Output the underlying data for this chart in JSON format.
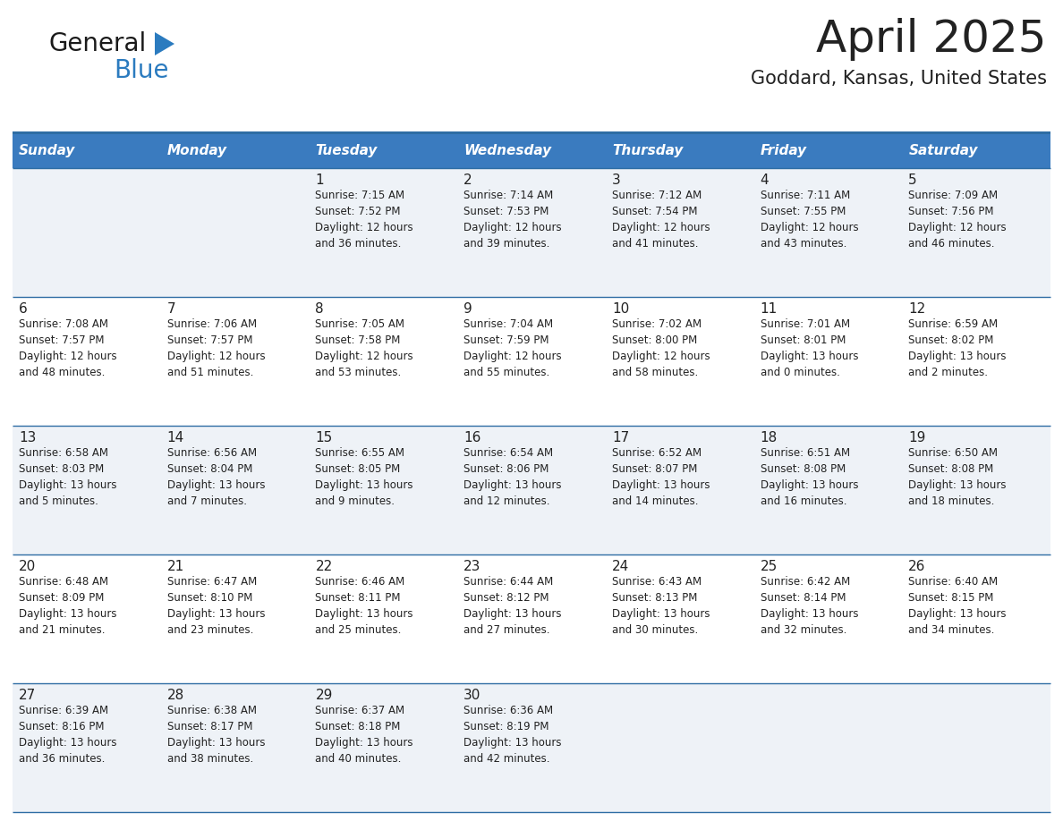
{
  "title": "April 2025",
  "subtitle": "Goddard, Kansas, United States",
  "header_bg_color": "#3a7bbf",
  "header_text_color": "#ffffff",
  "cell_bg_color_light": "#eef2f7",
  "cell_bg_color_white": "#ffffff",
  "separator_color": "#2e6da4",
  "text_color": "#222222",
  "days_of_week": [
    "Sunday",
    "Monday",
    "Tuesday",
    "Wednesday",
    "Thursday",
    "Friday",
    "Saturday"
  ],
  "weeks": [
    [
      {
        "day": "",
        "info": ""
      },
      {
        "day": "",
        "info": ""
      },
      {
        "day": "1",
        "info": "Sunrise: 7:15 AM\nSunset: 7:52 PM\nDaylight: 12 hours\nand 36 minutes."
      },
      {
        "day": "2",
        "info": "Sunrise: 7:14 AM\nSunset: 7:53 PM\nDaylight: 12 hours\nand 39 minutes."
      },
      {
        "day": "3",
        "info": "Sunrise: 7:12 AM\nSunset: 7:54 PM\nDaylight: 12 hours\nand 41 minutes."
      },
      {
        "day": "4",
        "info": "Sunrise: 7:11 AM\nSunset: 7:55 PM\nDaylight: 12 hours\nand 43 minutes."
      },
      {
        "day": "5",
        "info": "Sunrise: 7:09 AM\nSunset: 7:56 PM\nDaylight: 12 hours\nand 46 minutes."
      }
    ],
    [
      {
        "day": "6",
        "info": "Sunrise: 7:08 AM\nSunset: 7:57 PM\nDaylight: 12 hours\nand 48 minutes."
      },
      {
        "day": "7",
        "info": "Sunrise: 7:06 AM\nSunset: 7:57 PM\nDaylight: 12 hours\nand 51 minutes."
      },
      {
        "day": "8",
        "info": "Sunrise: 7:05 AM\nSunset: 7:58 PM\nDaylight: 12 hours\nand 53 minutes."
      },
      {
        "day": "9",
        "info": "Sunrise: 7:04 AM\nSunset: 7:59 PM\nDaylight: 12 hours\nand 55 minutes."
      },
      {
        "day": "10",
        "info": "Sunrise: 7:02 AM\nSunset: 8:00 PM\nDaylight: 12 hours\nand 58 minutes."
      },
      {
        "day": "11",
        "info": "Sunrise: 7:01 AM\nSunset: 8:01 PM\nDaylight: 13 hours\nand 0 minutes."
      },
      {
        "day": "12",
        "info": "Sunrise: 6:59 AM\nSunset: 8:02 PM\nDaylight: 13 hours\nand 2 minutes."
      }
    ],
    [
      {
        "day": "13",
        "info": "Sunrise: 6:58 AM\nSunset: 8:03 PM\nDaylight: 13 hours\nand 5 minutes."
      },
      {
        "day": "14",
        "info": "Sunrise: 6:56 AM\nSunset: 8:04 PM\nDaylight: 13 hours\nand 7 minutes."
      },
      {
        "day": "15",
        "info": "Sunrise: 6:55 AM\nSunset: 8:05 PM\nDaylight: 13 hours\nand 9 minutes."
      },
      {
        "day": "16",
        "info": "Sunrise: 6:54 AM\nSunset: 8:06 PM\nDaylight: 13 hours\nand 12 minutes."
      },
      {
        "day": "17",
        "info": "Sunrise: 6:52 AM\nSunset: 8:07 PM\nDaylight: 13 hours\nand 14 minutes."
      },
      {
        "day": "18",
        "info": "Sunrise: 6:51 AM\nSunset: 8:08 PM\nDaylight: 13 hours\nand 16 minutes."
      },
      {
        "day": "19",
        "info": "Sunrise: 6:50 AM\nSunset: 8:08 PM\nDaylight: 13 hours\nand 18 minutes."
      }
    ],
    [
      {
        "day": "20",
        "info": "Sunrise: 6:48 AM\nSunset: 8:09 PM\nDaylight: 13 hours\nand 21 minutes."
      },
      {
        "day": "21",
        "info": "Sunrise: 6:47 AM\nSunset: 8:10 PM\nDaylight: 13 hours\nand 23 minutes."
      },
      {
        "day": "22",
        "info": "Sunrise: 6:46 AM\nSunset: 8:11 PM\nDaylight: 13 hours\nand 25 minutes."
      },
      {
        "day": "23",
        "info": "Sunrise: 6:44 AM\nSunset: 8:12 PM\nDaylight: 13 hours\nand 27 minutes."
      },
      {
        "day": "24",
        "info": "Sunrise: 6:43 AM\nSunset: 8:13 PM\nDaylight: 13 hours\nand 30 minutes."
      },
      {
        "day": "25",
        "info": "Sunrise: 6:42 AM\nSunset: 8:14 PM\nDaylight: 13 hours\nand 32 minutes."
      },
      {
        "day": "26",
        "info": "Sunrise: 6:40 AM\nSunset: 8:15 PM\nDaylight: 13 hours\nand 34 minutes."
      }
    ],
    [
      {
        "day": "27",
        "info": "Sunrise: 6:39 AM\nSunset: 8:16 PM\nDaylight: 13 hours\nand 36 minutes."
      },
      {
        "day": "28",
        "info": "Sunrise: 6:38 AM\nSunset: 8:17 PM\nDaylight: 13 hours\nand 38 minutes."
      },
      {
        "day": "29",
        "info": "Sunrise: 6:37 AM\nSunset: 8:18 PM\nDaylight: 13 hours\nand 40 minutes."
      },
      {
        "day": "30",
        "info": "Sunrise: 6:36 AM\nSunset: 8:19 PM\nDaylight: 13 hours\nand 42 minutes."
      },
      {
        "day": "",
        "info": ""
      },
      {
        "day": "",
        "info": ""
      },
      {
        "day": "",
        "info": ""
      }
    ]
  ],
  "logo_text_general": "General",
  "logo_text_blue": "Blue",
  "logo_color_general": "#1a1a1a",
  "logo_color_blue": "#2b7bbf",
  "logo_triangle_color": "#2b7bbf",
  "title_fontsize": 36,
  "subtitle_fontsize": 15,
  "day_header_fontsize": 11,
  "day_num_fontsize": 11,
  "cell_text_fontsize": 8.5
}
